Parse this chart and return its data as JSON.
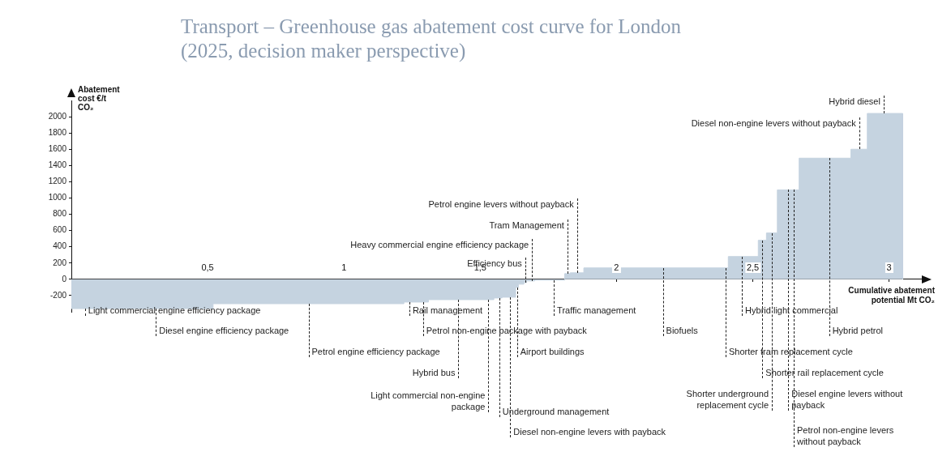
{
  "chart_data": {
    "type": "area",
    "title": "Transport – Greenhouse gas abatement cost curve for London (2025, decision maker perspective)",
    "xlabel": "Cumulative abatement potential Mt CO₂",
    "ylabel": "Abatement cost €/t CO₂",
    "color": "#c5d3e0",
    "x": [
      0,
      0.52,
      0.52,
      1.22,
      1.22,
      1.31,
      1.31,
      1.55,
      1.55,
      1.58,
      1.58,
      1.63,
      1.63,
      1.64,
      1.64,
      1.66,
      1.66,
      1.67,
      1.67,
      1.7,
      1.7,
      1.81,
      1.81,
      1.83,
      1.83,
      1.88,
      1.88,
      2.41,
      2.41,
      2.52,
      2.52,
      2.55,
      2.55,
      2.59,
      2.59,
      2.67,
      2.67,
      2.86,
      2.86,
      2.92,
      2.92,
      3.05,
      3.05
    ],
    "values": [
      -360,
      -360,
      -300,
      -300,
      -280,
      -280,
      -250,
      -250,
      -230,
      -230,
      -220,
      -220,
      -100,
      -100,
      -60,
      -60,
      -40,
      -40,
      -20,
      -20,
      -10,
      -10,
      70,
      70,
      80,
      80,
      140,
      140,
      280,
      280,
      480,
      480,
      570,
      570,
      1100,
      1100,
      1490,
      1490,
      1600,
      1600,
      2040,
      2040,
      0
    ],
    "xlim": [
      0,
      3.12
    ],
    "ylim": [
      -400,
      2200
    ],
    "xticks": [
      {
        "value": 0.5,
        "label": "0,5"
      },
      1,
      {
        "value": 1.5,
        "label": "1,5"
      },
      2,
      {
        "value": 2.5,
        "label": "2,5"
      },
      3
    ],
    "yticks": [
      -200,
      0,
      200,
      400,
      600,
      800,
      1000,
      1200,
      1400,
      1600,
      1800,
      2000
    ],
    "annotations": [
      {
        "text": "Light commercial engine efficiency package",
        "x": 0.05,
        "y": -360
      },
      {
        "text": "Diesel engine efficiency package",
        "x": 0.31,
        "y": -360
      },
      {
        "text": "Petrol engine efficiency package",
        "x": 0.87,
        "y": -300
      },
      {
        "text": "Hybrid bus",
        "x": 1.42,
        "y": -250
      },
      {
        "text": "Light commercial non-engine package",
        "x": 1.53,
        "y": -250
      },
      {
        "text": "Rail management",
        "x": 1.24,
        "y": -280
      },
      {
        "text": "Petrol non-engine package with payback",
        "x": 1.29,
        "y": -280
      },
      {
        "text": "Underground management",
        "x": 1.57,
        "y": -230
      },
      {
        "text": "Diesel non-engine levers with payback",
        "x": 1.61,
        "y": -220
      },
      {
        "text": "Airport buildings",
        "x": 1.635,
        "y": -100
      },
      {
        "text": "Traffic management",
        "x": 1.77,
        "y": -10
      },
      {
        "text": "Efficiency bus",
        "x": 1.665,
        "y": -40
      },
      {
        "text": "Heavy commercial engine efficiency package",
        "x": 1.69,
        "y": -20
      },
      {
        "text": "Tram Management",
        "x": 1.82,
        "y": 70
      },
      {
        "text": "Petrol engine levers without payback",
        "x": 1.855,
        "y": 80
      },
      {
        "text": "Biofuels",
        "x": 2.17,
        "y": 140
      },
      {
        "text": "Hybrid light commercial",
        "x": 2.46,
        "y": 280
      },
      {
        "text": "Shorter tram replacement cycle",
        "x": 2.4,
        "y": 140
      },
      {
        "text": "Shorter rail replacement cycle",
        "x": 2.535,
        "y": 480
      },
      {
        "text": "Shorter underground replacement cycle",
        "x": 2.57,
        "y": 570
      },
      {
        "text": "Diesel engine levers without payback",
        "x": 2.63,
        "y": 1100
      },
      {
        "text": "Petrol non-engine levers without payback",
        "x": 2.65,
        "y": 1100
      },
      {
        "text": "Hybrid petrol",
        "x": 2.78,
        "y": 1490
      },
      {
        "text": "Diesel non-engine levers without payback",
        "x": 2.89,
        "y": 1600
      },
      {
        "text": "Hybrid diesel",
        "x": 2.98,
        "y": 2040
      }
    ]
  }
}
